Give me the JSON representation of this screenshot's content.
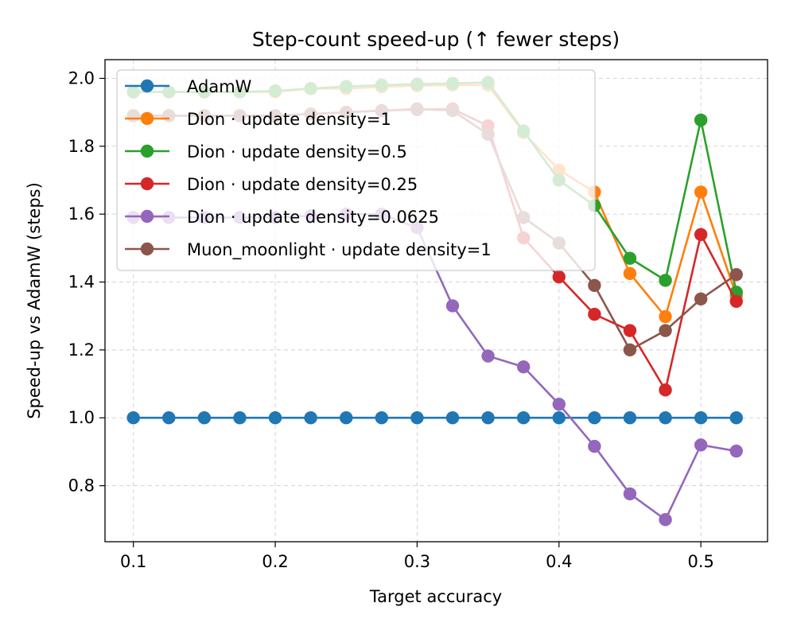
{
  "chart_data": {
    "type": "line",
    "title": "Step-count speed-up (↑ fewer steps)",
    "xlabel": "Target accuracy",
    "ylabel": "Speed-up vs AdamW (steps)",
    "xlim": [
      0.08,
      0.547
    ],
    "ylim": [
      0.635,
      2.055
    ],
    "xticks": [
      0.1,
      0.2,
      0.3,
      0.4,
      0.5
    ],
    "xtick_labels": [
      "0.1",
      "0.2",
      "0.3",
      "0.4",
      "0.5"
    ],
    "yticks": [
      0.8,
      1.0,
      1.2,
      1.4,
      1.6,
      1.8,
      2.0
    ],
    "ytick_labels": [
      "0.8",
      "1.0",
      "1.2",
      "1.4",
      "1.6",
      "1.8",
      "2.0"
    ],
    "grid": true,
    "legend_position": "top-left",
    "x": [
      0.1,
      0.125,
      0.15,
      0.175,
      0.2,
      0.225,
      0.25,
      0.275,
      0.3,
      0.325,
      0.35,
      0.375,
      0.4,
      0.425,
      0.45,
      0.475,
      0.5,
      0.525
    ],
    "series": [
      {
        "name": "AdamW",
        "color": "#1f77b4",
        "values": [
          1.0,
          1.0,
          1.0,
          1.0,
          1.0,
          1.0,
          1.0,
          1.0,
          1.0,
          1.0,
          1.0,
          1.0,
          1.0,
          1.0,
          1.0,
          1.0,
          1.0,
          1.0
        ]
      },
      {
        "name": "Dion · update density=1",
        "color": "#ff7f0e",
        "values": [
          1.96,
          1.96,
          1.96,
          1.96,
          1.96,
          1.97,
          1.97,
          1.975,
          1.978,
          1.98,
          1.98,
          1.84,
          1.73,
          1.665,
          1.425,
          1.298,
          1.665,
          1.36
        ]
      },
      {
        "name": "Dion · update density=0.5",
        "color": "#2ca02c",
        "values": [
          1.96,
          1.96,
          1.96,
          1.96,
          1.963,
          1.97,
          1.976,
          1.98,
          1.983,
          1.985,
          1.988,
          1.845,
          1.7,
          1.625,
          1.47,
          1.405,
          1.877,
          1.37
        ]
      },
      {
        "name": "Dion · update density=0.25",
        "color": "#d62728",
        "values": [
          1.89,
          1.89,
          1.89,
          1.89,
          1.89,
          1.895,
          1.9,
          1.905,
          1.908,
          1.91,
          1.86,
          1.53,
          1.415,
          1.305,
          1.257,
          1.082,
          1.54,
          1.343
        ]
      },
      {
        "name": "Dion · update density=0.0625",
        "color": "#9467bd",
        "values": [
          1.59,
          1.59,
          1.59,
          1.59,
          1.59,
          1.595,
          1.6,
          1.6,
          1.56,
          1.33,
          1.182,
          1.15,
          1.04,
          0.916,
          0.776,
          0.7,
          0.92,
          0.902
        ]
      },
      {
        "name": "Muon_moonlight · update density=1",
        "color": "#8c564b",
        "values": [
          1.89,
          1.89,
          1.89,
          1.89,
          1.89,
          1.895,
          1.9,
          1.905,
          1.91,
          1.905,
          1.835,
          1.59,
          1.515,
          1.39,
          1.2,
          1.257,
          1.35,
          1.422
        ]
      }
    ]
  }
}
